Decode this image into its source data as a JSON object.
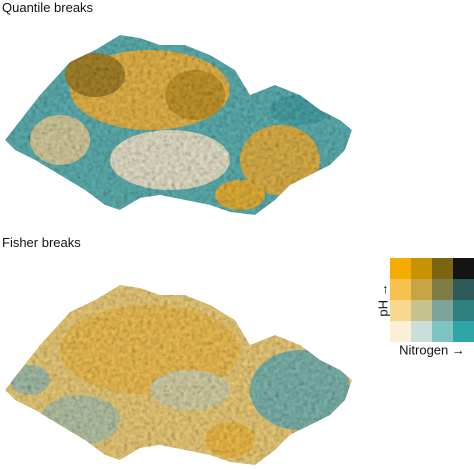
{
  "panels": [
    {
      "title": "Quantile breaks"
    },
    {
      "title": "Fisher breaks"
    }
  ],
  "legend": {
    "y_label": "pH →",
    "x_label": "Nitrogen →"
  }
}
